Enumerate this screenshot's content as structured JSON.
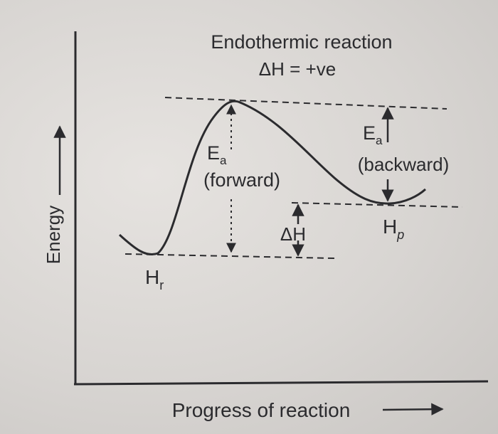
{
  "title": "Endothermic reaction",
  "subtitle": "ΔH = +ve",
  "y_axis_label": "Energy",
  "x_axis_label": "Progress of reaction",
  "ea_forward": {
    "symbol": "E",
    "subscript": "a",
    "direction": "(forward)"
  },
  "ea_backward": {
    "symbol": "E",
    "subscript": "a",
    "direction": "(backward)"
  },
  "delta_h": "ΔH",
  "reactant_level": {
    "symbol": "H",
    "subscript": "r"
  },
  "product_level": {
    "symbol": "H",
    "subscript": "p"
  },
  "colors": {
    "ink": "#2b2b2e",
    "paper": "#dcd9d6"
  }
}
